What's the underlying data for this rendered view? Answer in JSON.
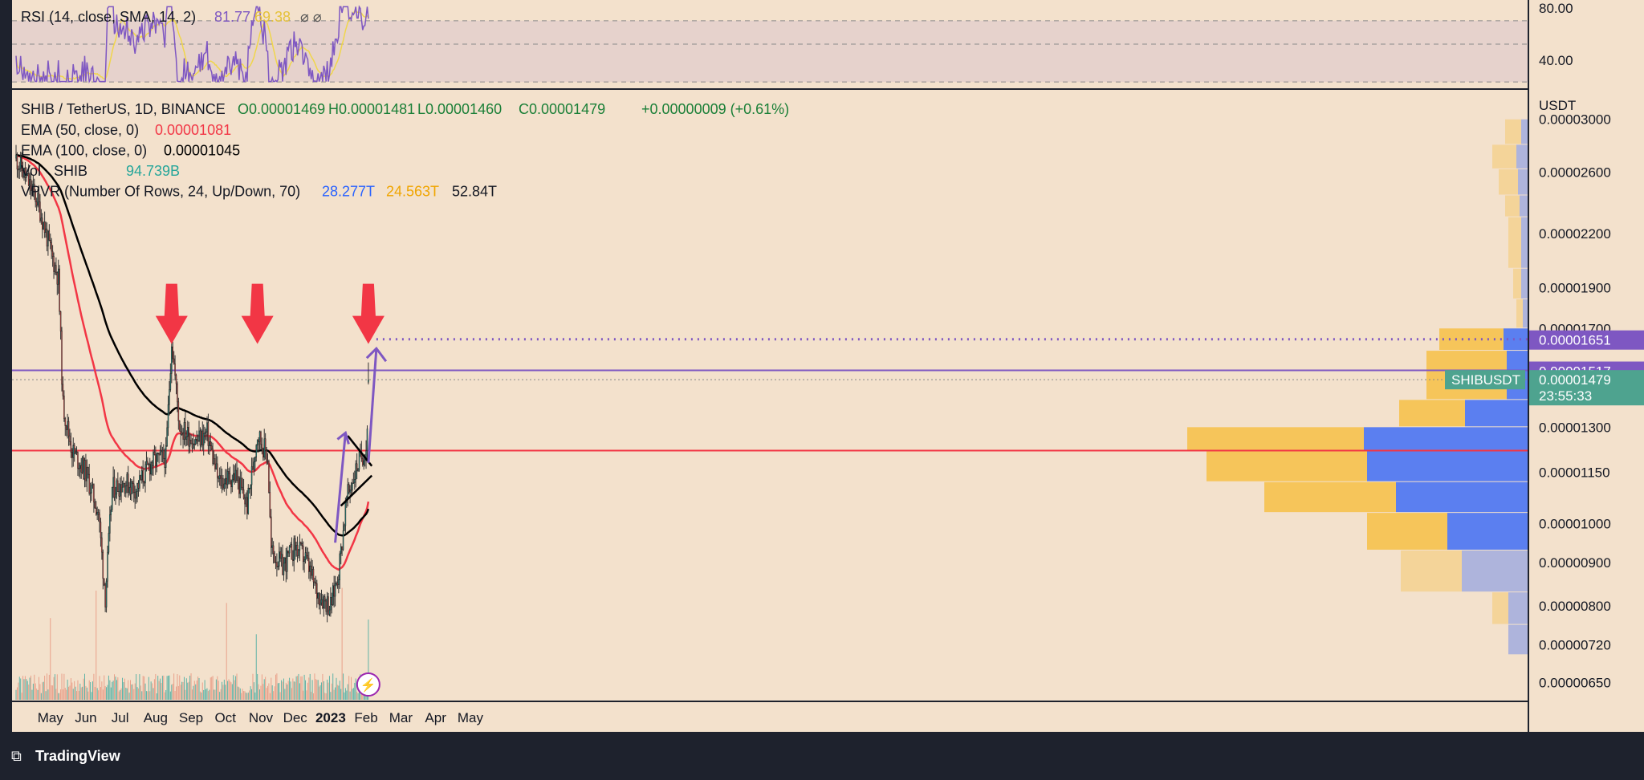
{
  "colors": {
    "background": "#f3e1cc",
    "frame": "#1e222d",
    "up": "#26a69a",
    "down": "#ef5350",
    "up_volume": "#5fb3a6",
    "down_volume": "#e9a08a",
    "ema50": "#f23645",
    "ema100": "#000000",
    "rsi_line": "#7e57c2",
    "rsi_sma": "#f0d64a",
    "resistance": "#7e57c2",
    "support": "#f23645",
    "arrow": "#f23645",
    "vpvr_up": "#5b7ff0",
    "vpvr_down": "#f6c55a"
  },
  "chart_data": {
    "type": "candlestick",
    "scale": "log",
    "ylim": [
      6.2e-06,
      3.25e-05
    ],
    "yticks": [
      "0.00003000",
      "0.00002600",
      "0.00002200",
      "0.00001900",
      "0.00001700",
      "0.00001300",
      "0.00001150",
      "0.00001000",
      "0.00000900",
      "0.00000800",
      "0.00000720",
      "0.00000650"
    ],
    "xticks": [
      "May",
      "Jun",
      "Jul",
      "Aug",
      "Sep",
      "Oct",
      "Nov",
      "Dec",
      "2023",
      "Feb",
      "Mar",
      "Apr",
      "May"
    ],
    "axis_unit": "USDT",
    "header": {
      "symbol": "SHIB / TetherUS, 1D, BINANCE",
      "ohlc": [
        "O0.00001469",
        "H0.00001481",
        "L0.00001460",
        "C0.00001479"
      ],
      "change": "+0.00000009 (+0.61%)"
    },
    "indicators": [
      {
        "label": "EMA (50, close, 0)",
        "values": [
          "0.00001081"
        ]
      },
      {
        "label": "EMA (100, close, 0)",
        "values": [
          "0.00001045"
        ]
      },
      {
        "label": "Vol · SHIB",
        "values": [
          "94.739B"
        ]
      },
      {
        "label": "VPVR (Number Of Rows, 24, Up/Down, 70)",
        "values": [
          "28.277T",
          "24.563T",
          "52.84T"
        ]
      }
    ],
    "rsi": {
      "label": "RSI (14, close, SMA, 14, 2)",
      "value": "81.77",
      "sma_value": "69.38",
      "extra": "⌀ ⌀",
      "levels": [
        "80.00",
        "40.00"
      ]
    },
    "levels": [
      {
        "label": "0.00001651",
        "value": 1.651e-05,
        "style": "dotted",
        "color": "#7e57c2"
      },
      {
        "label": "0.00001517",
        "value": 1.517e-05,
        "style": "solid",
        "color": "#7e57c2"
      },
      {
        "label": "SHIBUSDT",
        "value": 1.479e-05,
        "price": "0.00001479",
        "countdown": "23:55:33",
        "color": "#26a69a"
      }
    ],
    "support_level": 1.22e-05,
    "arrow_dates": [
      "Aug 15",
      "Oct 29",
      "Feb 3"
    ]
  },
  "footer": {
    "brand": "TradingView"
  }
}
